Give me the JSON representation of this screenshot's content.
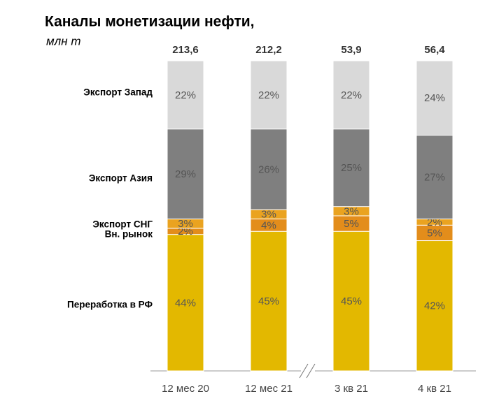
{
  "chart_data": {
    "type": "stacked_bar_100",
    "title": "Каналы монетизации нефти,",
    "subtitle": "млн т",
    "categories": [
      "12 мес 20",
      "12 мес 21",
      "3 кв 21",
      "4 кв 21"
    ],
    "totals": {
      "values": [
        213.6,
        212.2,
        53.9,
        56.4
      ],
      "value_labels": [
        "213,6",
        "212,2",
        "53,9",
        "56,4"
      ]
    },
    "ylim": [
      0,
      100
    ],
    "series": [
      {
        "name": "Переработка в РФ",
        "color": "#e3b800",
        "values": [
          44,
          45,
          45,
          42
        ],
        "value_labels": [
          "44%",
          "45%",
          "45%",
          "42%"
        ]
      },
      {
        "name": "Вн. рынок",
        "color": "#e38d1b",
        "values": [
          2,
          4,
          5,
          5
        ],
        "value_labels": [
          "2%",
          "4%",
          "5%",
          "5%"
        ]
      },
      {
        "name": "Экспорт СНГ",
        "color": "#eaa320",
        "values": [
          3,
          3,
          3,
          2
        ],
        "value_labels": [
          "3%",
          "3%",
          "3%",
          "2%"
        ]
      },
      {
        "name": "Экспорт Азия",
        "color": "#7f7f7f",
        "values": [
          29,
          26,
          25,
          27
        ],
        "value_labels": [
          "29%",
          "26%",
          "25%",
          "27%"
        ]
      },
      {
        "name": "Экспорт Запад",
        "color": "#d9d9d9",
        "values": [
          22,
          22,
          22,
          24
        ],
        "value_labels": [
          "22%",
          "22%",
          "22%",
          "24%"
        ]
      }
    ]
  }
}
